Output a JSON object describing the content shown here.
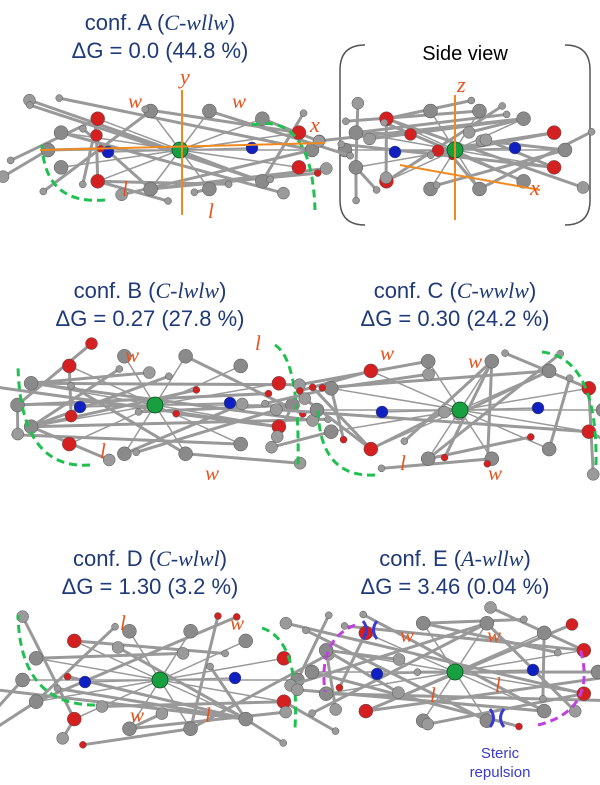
{
  "panels": [
    {
      "title_prefix": "conf. A (",
      "code": "C-wllw",
      "title_suffix": ")",
      "energy": "ΔG = 0.0 (44.8 %)",
      "labels": [
        "w",
        "w",
        "l",
        "l"
      ],
      "axes": [
        "x",
        "y"
      ]
    },
    {
      "title_prefix": "conf. B (",
      "code": "C-lwlw",
      "title_suffix": ")",
      "energy": "ΔG = 0.27 (27.8 %)",
      "labels": [
        "w",
        "l",
        "l",
        "w"
      ]
    },
    {
      "title_prefix": "conf. C (",
      "code": "C-wwlw",
      "title_suffix": ")",
      "energy": "ΔG = 0.30 (24.2 %)",
      "labels": [
        "w",
        "w",
        "l",
        "w"
      ]
    },
    {
      "title_prefix": "conf. D (",
      "code": "C-wlwl",
      "title_suffix": ")",
      "energy": "ΔG = 1.30 (3.2 %)",
      "labels": [
        "l",
        "w",
        "w",
        "l"
      ]
    },
    {
      "title_prefix": "conf. E (",
      "code": "A-wllw",
      "title_suffix": ")",
      "energy": "ΔG = 3.46 (0.04 %)",
      "labels": [
        "w",
        "w",
        "l",
        "l"
      ],
      "note": [
        "Steric",
        "repulsion"
      ]
    }
  ],
  "side_view": {
    "title": "Side view",
    "axes": [
      "z",
      "x"
    ]
  }
}
